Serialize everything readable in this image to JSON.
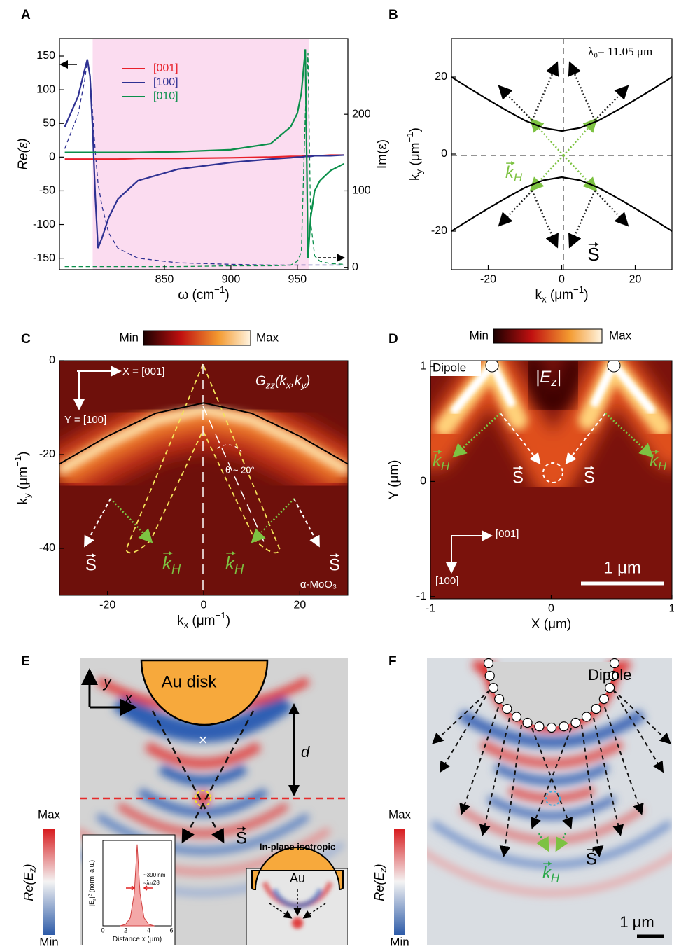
{
  "panel_labels": [
    "A",
    "B",
    "C",
    "D",
    "E",
    "F"
  ],
  "chart_data": [
    {
      "type": "line",
      "xlim": [
        771,
        988
      ],
      "ylim": [
        -167,
        176
      ],
      "y2lim": [
        -3,
        299
      ],
      "xticks": [
        850,
        900,
        950
      ],
      "yticks": [
        -150,
        -100,
        -50,
        0,
        50,
        100,
        150
      ],
      "y2ticks": [
        0,
        100,
        200
      ],
      "xlabel": [
        {
          "text": "ω (cm"
        },
        {
          "sup": "−1"
        },
        {
          "text": ")"
        }
      ],
      "ylabel": [
        {
          "text": "Re(ε)"
        }
      ],
      "y2label": [
        {
          "text": "Im(ε)"
        }
      ],
      "legend": "upper left",
      "shade": [
        796,
        959
      ],
      "shade_color": "#fbdcf0",
      "x": [
        775,
        785,
        790,
        792,
        794,
        796,
        798,
        800,
        803,
        808,
        815,
        830,
        860,
        900,
        930,
        945,
        950,
        953,
        956,
        958,
        960,
        963,
        967,
        975,
        985
      ],
      "series": [
        {
          "name": "[001]",
          "color": "#e8202a",
          "values": [
            -3,
            -3,
            -3,
            -3,
            -3,
            -3,
            -3,
            -3,
            -3,
            -3,
            -3,
            -2,
            -2,
            -1,
            0,
            1,
            1,
            1,
            2,
            2,
            2,
            2,
            2,
            3,
            3
          ]
        },
        {
          "name": "[100]",
          "color": "#2e3192",
          "values": [
            45,
            90,
            130,
            145,
            120,
            40,
            -60,
            -135,
            -120,
            -90,
            -62,
            -35,
            -18,
            -8,
            -3,
            -1,
            0,
            0,
            1,
            1,
            1,
            2,
            2,
            2,
            3
          ]
        },
        {
          "name": "[010]",
          "color": "#0a8f4a",
          "values": [
            7,
            7,
            7,
            7,
            7,
            7,
            7,
            7,
            7,
            7,
            7,
            7,
            8,
            11,
            20,
            45,
            65,
            95,
            160,
            -150,
            -90,
            -50,
            -35,
            -20,
            -10
          ]
        },
        {
          "color": "#2e3192",
          "dash": true,
          "axis": "y2",
          "values": [
            155,
            200,
            245,
            270,
            250,
            200,
            150,
            110,
            80,
            45,
            25,
            12,
            6,
            4,
            3,
            3,
            3,
            3,
            3,
            3,
            3,
            3,
            3,
            3,
            3
          ]
        },
        {
          "color": "#0a8f4a",
          "dash": true,
          "axis": "y2",
          "values": [
            1,
            1,
            1,
            1,
            1,
            1,
            1,
            1,
            1,
            1,
            1,
            1,
            1,
            2,
            2,
            3,
            8,
            20,
            200,
            280,
            60,
            15,
            8,
            5,
            4
          ]
        }
      ]
    },
    {
      "type": "line",
      "xlim": [
        -30,
        30
      ],
      "ylim": [
        -30,
        30
      ],
      "xticks": [
        -20,
        0,
        20
      ],
      "yticks": [
        -20,
        0,
        20
      ],
      "xlabel": [
        {
          "text": "k"
        },
        {
          "sub": "x"
        },
        {
          "text": " (μm"
        },
        {
          "sup": "−1"
        },
        {
          "text": ")"
        }
      ],
      "ylabel": [
        {
          "text": "k"
        },
        {
          "sub": "y"
        },
        {
          "text": " (μm"
        },
        {
          "sup": "−1"
        },
        {
          "text": ")"
        }
      ],
      "annotation": "λ₀= 11.05 μm",
      "k_label": [
        {
          "text": "k"
        },
        {
          "sub": "H"
        }
      ],
      "s_label": "S",
      "x": [
        -30,
        -25,
        -20,
        -15,
        -10,
        -5,
        0,
        5,
        10,
        15,
        20,
        25,
        30
      ],
      "series": [
        {
          "color": "#000000",
          "values": [
            20,
            17,
            14.1,
            11.3,
            8.7,
            6.8,
            6,
            6.8,
            8.7,
            11.3,
            14.1,
            17,
            20
          ]
        },
        {
          "color": "#000000",
          "values": [
            -20,
            -17,
            -14.1,
            -11.3,
            -8.7,
            -6.8,
            -6,
            -6.8,
            -8.7,
            -11.3,
            -14.1,
            -17,
            -20
          ]
        }
      ]
    }
  ],
  "panel_c": {
    "xlim": [
      -30,
      30
    ],
    "ylim": [
      -50,
      0
    ],
    "xticks": [
      -20,
      0,
      20
    ],
    "yticks": [
      0,
      -20,
      -40
    ],
    "xlabel": [
      {
        "text": "k"
      },
      {
        "sub": "x"
      },
      {
        "text": " (μm"
      },
      {
        "sup": "−1"
      },
      {
        "text": ")"
      }
    ],
    "ylabel": [
      {
        "text": "k"
      },
      {
        "sub": "y"
      },
      {
        "text": " (μm"
      },
      {
        "sup": "−1"
      },
      {
        "text": ")"
      }
    ],
    "colorbar_min": "Min",
    "colorbar_max": "Max",
    "x_dir": "X = [001]",
    "y_dir": "Y = [100]",
    "function": [
      {
        "text": "G"
      },
      {
        "sub": "zz"
      },
      {
        "text": "(k"
      },
      {
        "sub": "x"
      },
      {
        "text": ",k"
      },
      {
        "sub": "y"
      },
      {
        "text": ")"
      }
    ],
    "angle": "θ ~ 20°",
    "material": "α-MoO₃",
    "s_label": "S",
    "k_label": [
      {
        "text": "k"
      },
      {
        "sub": "H"
      }
    ],
    "curve": {
      "x": [
        -30,
        -20,
        -10,
        0,
        10,
        20,
        30
      ],
      "values": [
        -22,
        -16.1,
        -11.2,
        -9,
        -11.2,
        -16.1,
        -22
      ]
    }
  },
  "panel_d": {
    "xlim": [
      -1,
      1
    ],
    "ylim": [
      -1.02,
      1.05
    ],
    "xticks": [
      -1,
      0,
      1
    ],
    "yticks": [
      1,
      0,
      -1
    ],
    "xlabel": [
      {
        "text": "X (μm)"
      }
    ],
    "ylabel": [
      {
        "text": "Y (μm)"
      }
    ],
    "colorbar_min": "Min",
    "colorbar_max": "Max",
    "dipole": "Dipole",
    "field": [
      {
        "text": "|E"
      },
      {
        "sub": "z"
      },
      {
        "text": "|"
      }
    ],
    "s_label": "S",
    "k_label": [
      {
        "text": "k"
      },
      {
        "sub": "H"
      }
    ],
    "dir_x": "[001]",
    "dir_y": "[100]",
    "scale": "1 μm"
  },
  "panel_e": {
    "disk": "Au disk",
    "axis_y": "y",
    "axis_x": "x",
    "distance": "d",
    "s_label": "S",
    "colorbar_max": "Max",
    "colorbar_min": "Min",
    "colorbar_label": [
      {
        "text": "Re(E"
      },
      {
        "sub": "z"
      },
      {
        "text": ")"
      }
    ],
    "inset": {
      "xlim": [
        0,
        6
      ],
      "ylim": [
        0,
        1.05
      ],
      "xticks": [
        0,
        2,
        4,
        6
      ],
      "xlabel": [
        {
          "text": "Distance x (μm)"
        }
      ],
      "ylabel": [
        {
          "text": "|E"
        },
        {
          "sub": "z"
        },
        {
          "text": "|"
        },
        {
          "sup": "2"
        },
        {
          "text": " (norm. a.u.)"
        }
      ],
      "x": [
        1.5,
        2,
        2.4,
        2.75,
        3,
        3.25,
        3.6,
        4,
        4.5
      ],
      "values": [
        0,
        0.02,
        0.1,
        0.4,
        1,
        0.4,
        0.1,
        0.02,
        0
      ],
      "width_label": "~390 nm",
      "ratio_label": "≈λ₀/28"
    },
    "isotropic": "In-plane isotropic",
    "au": "Au"
  },
  "panel_f": {
    "dipole": "Dipole",
    "colorbar_max": "Max",
    "colorbar_min": "Min",
    "colorbar_label": [
      {
        "text": "Re(E"
      },
      {
        "sub": "z"
      },
      {
        "text": ")"
      }
    ],
    "s_label": "S",
    "k_label": [
      {
        "text": "k"
      },
      {
        "sub": "H"
      }
    ],
    "scale": "1 μm"
  }
}
